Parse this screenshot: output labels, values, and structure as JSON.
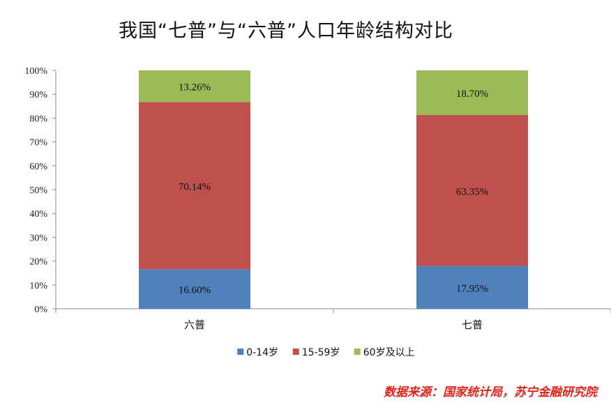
{
  "source_note": "数据来源：国家统计局，苏宁金融研究院",
  "colors": {
    "s0": "#4f81bd",
    "s1": "#c0504d",
    "s2": "#9bbb59",
    "axis": "#888888"
  },
  "chart_data": {
    "type": "bar",
    "stacked": true,
    "title": "我国“七普”与“六普”人口年龄结构对比",
    "categories": [
      "六普",
      "七普"
    ],
    "series": [
      {
        "name": "0-14岁",
        "values": [
          16.6,
          17.95
        ],
        "labels": [
          "16.60%",
          "17.95%"
        ]
      },
      {
        "name": "15-59岁",
        "values": [
          70.14,
          63.35
        ],
        "labels": [
          "70.14%",
          "63.35%"
        ]
      },
      {
        "name": "60岁及以上",
        "values": [
          13.26,
          18.7
        ],
        "labels": [
          "13.26%",
          "18.70%"
        ]
      }
    ],
    "ylim": [
      0,
      100
    ],
    "yticks": [
      "0%",
      "10%",
      "20%",
      "30%",
      "40%",
      "50%",
      "60%",
      "70%",
      "80%",
      "90%",
      "100%"
    ],
    "grid": false,
    "legend": "bottom"
  }
}
